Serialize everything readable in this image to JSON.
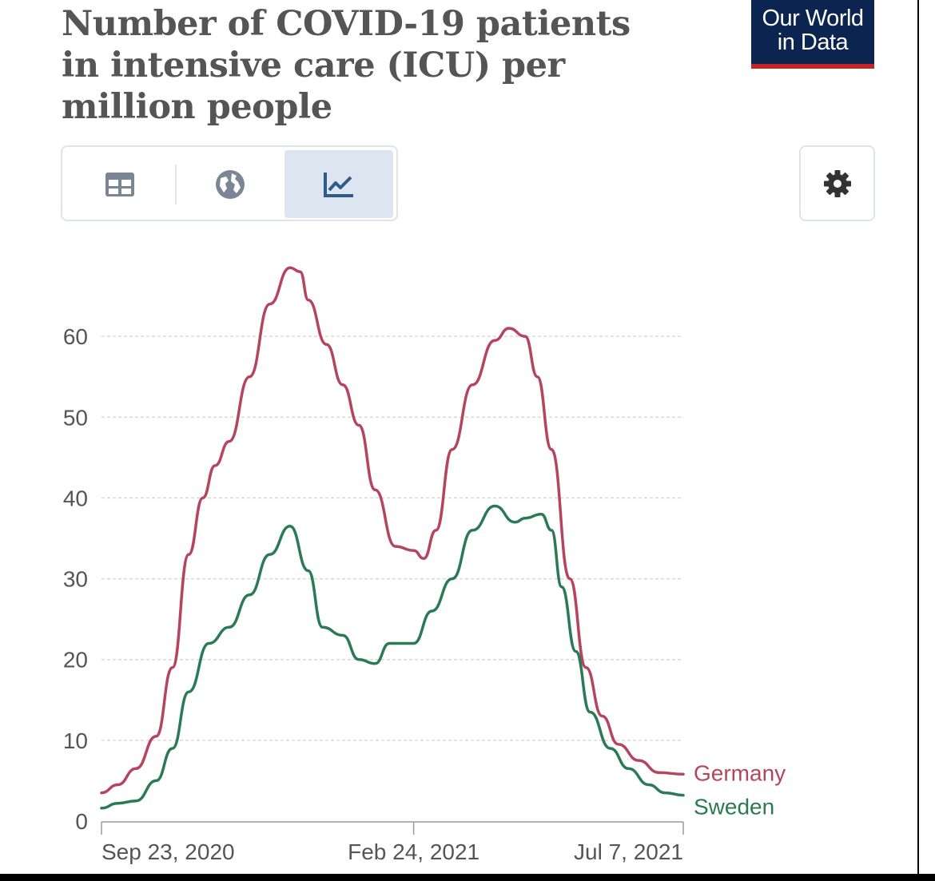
{
  "header": {
    "title": "Number of COVID-19 patients in intensive care (ICU) per million people",
    "logo_line1": "Our World",
    "logo_line2": "in Data"
  },
  "tabs": [
    {
      "icon": "table-icon",
      "active": false
    },
    {
      "icon": "globe-icon",
      "active": false
    },
    {
      "icon": "line-chart-icon",
      "active": true
    }
  ],
  "settings_icon": "gear-icon",
  "colors": {
    "germany": "#b5455e",
    "sweden": "#2b7a56",
    "active_tab": "#dde6f0",
    "active_tab_icon": "#2e5c8a",
    "logo_bg": "#0b2550",
    "logo_underline": "#c0272d"
  },
  "chart_data": {
    "type": "line",
    "title": "Number of COVID-19 patients in intensive care (ICU) per million people",
    "xlabel": "",
    "ylabel": "",
    "ylim": [
      0,
      70
    ],
    "yticks": [
      0,
      10,
      20,
      30,
      40,
      50,
      60
    ],
    "xlim": [
      "2020-09-23",
      "2021-07-07"
    ],
    "xticks": [
      "Sep 23, 2020",
      "Feb 24, 2021",
      "Jul 7, 2021"
    ],
    "xtick_dates": [
      "2020-09-23",
      "2021-02-24",
      "2021-07-07"
    ],
    "grid": "horizontal dashed",
    "legend": "right of line ends",
    "series": [
      {
        "name": "Germany",
        "color": "#b5455e",
        "x": [
          "2020-09-23",
          "2020-10-01",
          "2020-10-10",
          "2020-10-20",
          "2020-10-28",
          "2020-11-05",
          "2020-11-12",
          "2020-11-18",
          "2020-11-25",
          "2020-12-05",
          "2020-12-15",
          "2020-12-25",
          "2020-12-30",
          "2021-01-03",
          "2021-01-12",
          "2021-01-20",
          "2021-01-28",
          "2021-02-05",
          "2021-02-15",
          "2021-02-24",
          "2021-03-01",
          "2021-03-07",
          "2021-03-15",
          "2021-03-25",
          "2021-04-05",
          "2021-04-12",
          "2021-04-20",
          "2021-04-26",
          "2021-05-03",
          "2021-05-12",
          "2021-05-20",
          "2021-05-28",
          "2021-06-05",
          "2021-06-15",
          "2021-06-25",
          "2021-07-07"
        ],
        "values": [
          3.5,
          4.5,
          6.5,
          10.5,
          19,
          33,
          40,
          44,
          47,
          55,
          64,
          68.5,
          68,
          64.5,
          59,
          54,
          49,
          41,
          34,
          33.5,
          32.5,
          36,
          46,
          54,
          59.5,
          61,
          60,
          55,
          46,
          30,
          19,
          13,
          9.5,
          7.5,
          6,
          5.8
        ]
      },
      {
        "name": "Sweden",
        "color": "#2b7a56",
        "x": [
          "2020-09-23",
          "2020-10-01",
          "2020-10-10",
          "2020-10-20",
          "2020-10-28",
          "2020-11-05",
          "2020-11-15",
          "2020-11-25",
          "2020-12-05",
          "2020-12-15",
          "2020-12-25",
          "2021-01-03",
          "2021-01-10",
          "2021-01-20",
          "2021-01-28",
          "2021-02-05",
          "2021-02-12",
          "2021-02-24",
          "2021-03-05",
          "2021-03-15",
          "2021-03-25",
          "2021-04-05",
          "2021-04-15",
          "2021-04-20",
          "2021-04-28",
          "2021-05-03",
          "2021-05-08",
          "2021-05-15",
          "2021-05-22",
          "2021-06-01",
          "2021-06-10",
          "2021-06-20",
          "2021-06-28",
          "2021-07-07"
        ],
        "values": [
          1.6,
          2.2,
          2.5,
          5,
          9,
          16,
          22,
          24,
          28,
          33,
          36.5,
          31,
          24,
          23,
          20,
          19.5,
          22,
          22,
          26,
          30,
          36,
          39,
          37,
          37.5,
          38,
          36,
          29,
          21,
          13.5,
          9,
          6.5,
          4.5,
          3.5,
          3.2
        ]
      }
    ]
  }
}
